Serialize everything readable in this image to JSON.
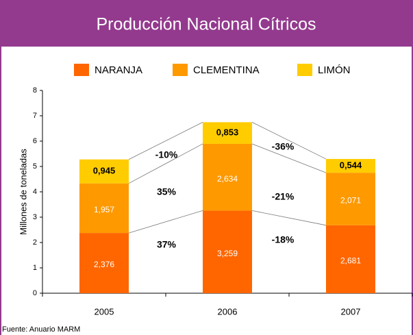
{
  "chart_data": {
    "type": "stacked_bar",
    "title": "Producción Nacional Cítricos",
    "y_label": "Millones de toneladas",
    "source": "Fuente: Anuario MARM",
    "categories": [
      "2005",
      "2006",
      "2007"
    ],
    "series": [
      {
        "name": "NARANJA",
        "color": "#ff6600",
        "values": [
          2.376,
          3.259,
          2.681
        ],
        "value_labels": [
          "2,376",
          "3,259",
          "2,681"
        ]
      },
      {
        "name": "CLEMENTINA",
        "color": "#ff9900",
        "values": [
          1.957,
          2.634,
          2.071
        ],
        "value_labels": [
          "1,957",
          "2,634",
          "2,071"
        ]
      },
      {
        "name": "LIMÓN",
        "color": "#ffcc00",
        "values": [
          0.945,
          0.853,
          0.544
        ],
        "value_labels": [
          "0,945",
          "0,853",
          "0,544"
        ]
      }
    ],
    "annotations": [
      "37%",
      "35%",
      "-10%",
      "-18%",
      "-21%",
      "-36%"
    ],
    "ylim": [
      0,
      8
    ],
    "yticks": [
      0,
      1,
      2,
      3,
      4,
      5,
      6,
      7,
      8
    ],
    "legend": "top"
  }
}
